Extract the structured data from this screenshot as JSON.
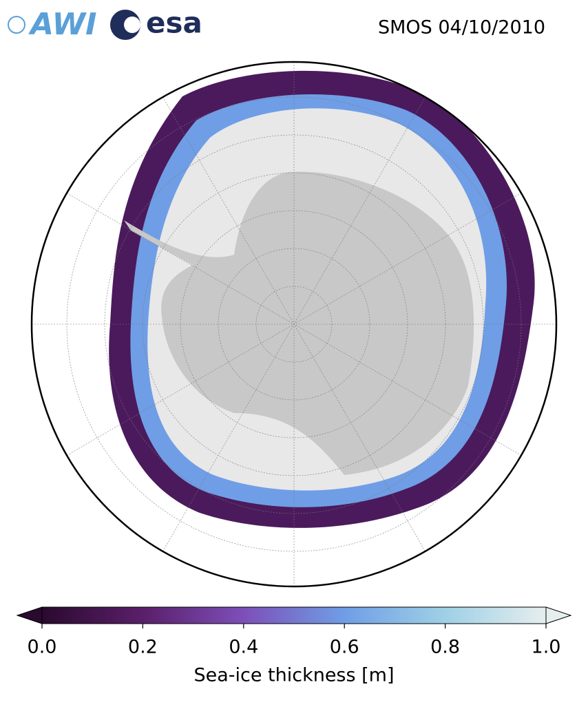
{
  "header": {
    "logos": [
      "AWI",
      "esa"
    ],
    "title": "SMOS 04/10/2010"
  },
  "colorbar": {
    "label": "Sea-ice thickness [m]",
    "lim": [
      0,
      1
    ],
    "ticks": [
      {
        "value": 0,
        "label": "0.0"
      },
      {
        "value": 0.2,
        "label": "0.2"
      },
      {
        "value": 0.4,
        "label": "0.4"
      },
      {
        "value": 0.6,
        "label": "0.6"
      },
      {
        "value": 0.8,
        "label": "0.8"
      },
      {
        "value": 1,
        "label": "1.0"
      }
    ],
    "colors": [
      "#2a0a2e",
      "#5a1f6a",
      "#7d4fb8",
      "#6f9ee6",
      "#9fd0e6",
      "#e6eeee"
    ]
  }
}
